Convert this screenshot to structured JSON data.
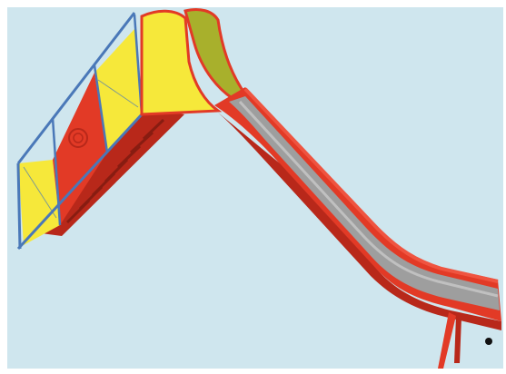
{
  "image": {
    "background_color": "#cfe6ee",
    "frame_color": "#ffffff",
    "colors": {
      "slide_red": "#e23a26",
      "slide_red_dark": "#b8281a",
      "chute_grey": "#9e9e9e",
      "panel_yellow": "#f6e83a",
      "panel_olive": "#a8b02c",
      "frame_blue": "#4a78b8",
      "foot_black": "#111111"
    }
  }
}
